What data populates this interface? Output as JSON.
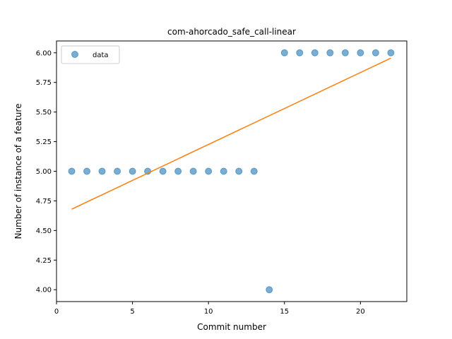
{
  "chart_data": {
    "type": "scatter",
    "title": "com-ahorcado_safe_call-linear",
    "xlabel": "Commit number",
    "ylabel": "Number of instance of a feature",
    "xlim": [
      0,
      23.05
    ],
    "ylim": [
      3.9,
      6.1
    ],
    "xticks": [
      0,
      5,
      10,
      15,
      20
    ],
    "xtick_labels": [
      "0",
      "5",
      "10",
      "15",
      "20"
    ],
    "yticks": [
      4.0,
      4.25,
      4.5,
      4.75,
      5.0,
      5.25,
      5.5,
      5.75,
      6.0
    ],
    "ytick_labels": [
      "4.00",
      "4.25",
      "4.50",
      "4.75",
      "5.00",
      "5.25",
      "5.50",
      "5.75",
      "6.00"
    ],
    "grid": false,
    "legend_position": "top-left",
    "series": [
      {
        "name": "data",
        "kind": "scatter",
        "color": "#1f77b4",
        "x": [
          1,
          2,
          3,
          4,
          5,
          6,
          7,
          8,
          9,
          10,
          11,
          12,
          13,
          14,
          15,
          16,
          17,
          18,
          19,
          20,
          21,
          22
        ],
        "y": [
          5,
          5,
          5,
          5,
          5,
          5,
          5,
          5,
          5,
          5,
          5,
          5,
          5,
          4,
          6,
          6,
          6,
          6,
          6,
          6,
          6,
          6
        ]
      },
      {
        "kind": "line",
        "color": "#ff7f0e",
        "x": [
          1,
          22
        ],
        "y": [
          4.68,
          5.955
        ]
      }
    ]
  }
}
